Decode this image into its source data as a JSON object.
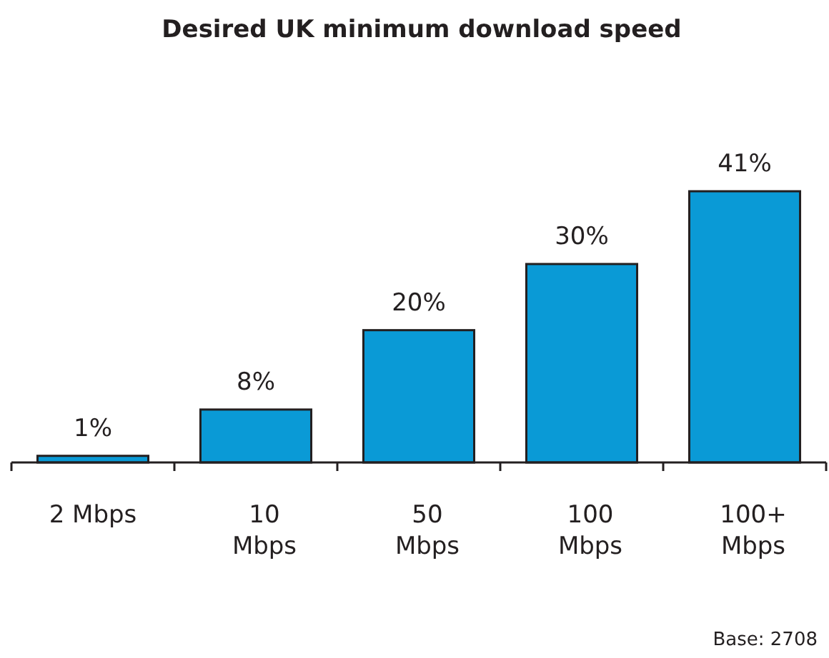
{
  "chart_data": {
    "type": "bar",
    "title": "Desired UK minimum download speed",
    "categories": [
      "2 Mbps",
      "10 Mbps",
      "50 Mbps",
      "100 Mbps",
      "100+ Mbps"
    ],
    "values": [
      1,
      8,
      20,
      30,
      41
    ],
    "value_labels": [
      "1%",
      "8%",
      "20%",
      "30%",
      "41%"
    ],
    "color": "#0a9ad6",
    "annotations": [
      "Base: 2708"
    ]
  }
}
